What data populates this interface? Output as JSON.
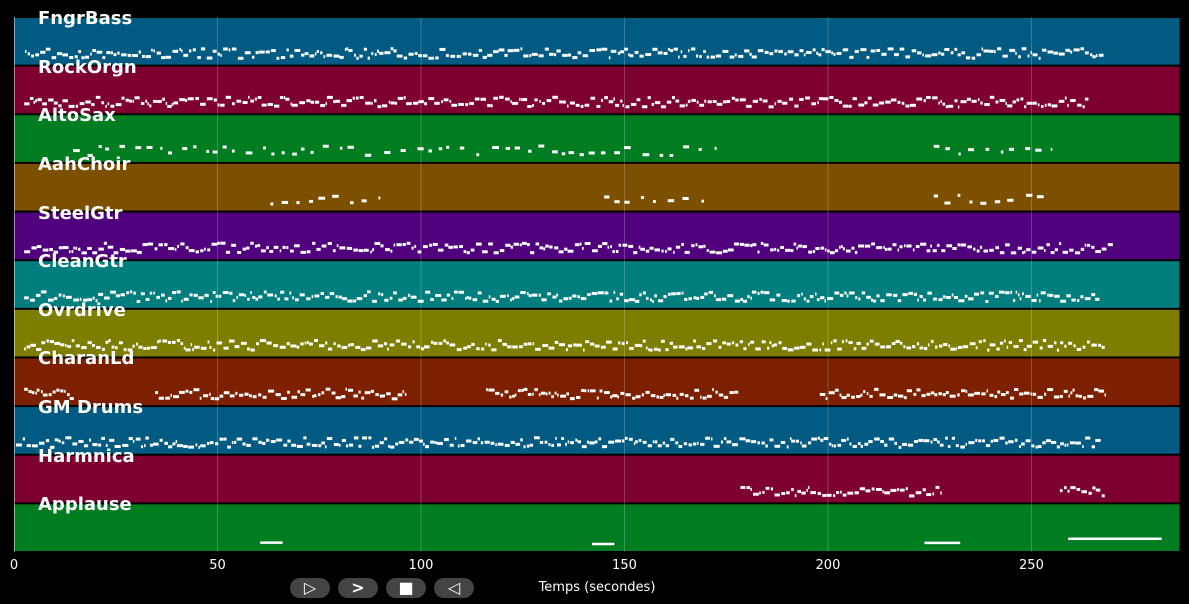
{
  "chart_data": {
    "type": "piano-roll",
    "xlabel": "Temps (secondes)",
    "xlim": [
      0,
      286.5
    ],
    "xticks": [
      0,
      50,
      100,
      150,
      200,
      250
    ],
    "grid": true,
    "tracks": [
      {
        "name": "FngrBass",
        "color": "#005a82",
        "active": [
          [
            2.7,
            267.7
          ]
        ],
        "density": "dense"
      },
      {
        "name": "RockOrgn",
        "color": "#7d0030",
        "active": [
          [
            2.5,
            264
          ]
        ],
        "density": "dense"
      },
      {
        "name": "AltoSax",
        "color": "#007d20",
        "active": [
          [
            14.5,
            173.5
          ],
          [
            226,
            255
          ]
        ],
        "density": "sparse"
      },
      {
        "name": "AahChoir",
        "color": "#7d5000",
        "active": [
          [
            63,
            90
          ],
          [
            145,
            172
          ],
          [
            226,
            253
          ]
        ],
        "density": "sparse"
      },
      {
        "name": "SteelGtr",
        "color": "#50007d",
        "active": [
          [
            2.5,
            270
          ]
        ],
        "density": "dense"
      },
      {
        "name": "CleanGtr",
        "color": "#007d7d",
        "active": [
          [
            2.5,
            267
          ]
        ],
        "density": "dense"
      },
      {
        "name": "Ovrdrive",
        "color": "#7d7d00",
        "active": [
          [
            2.5,
            268
          ]
        ],
        "density": "dense"
      },
      {
        "name": "CharanLd",
        "color": "#7d2000",
        "active": [
          [
            2.5,
            14.7
          ],
          [
            34.7,
            96.4
          ],
          [
            116,
            178
          ],
          [
            198,
            268
          ]
        ],
        "density": "dense"
      },
      {
        "name": "GM Drums",
        "color": "#005a82",
        "active": [
          [
            0.5,
            267
          ]
        ],
        "density": "dense"
      },
      {
        "name": "Harmnica",
        "color": "#7d0030",
        "active": [
          [
            178.5,
            227.6
          ],
          [
            257,
            268
          ]
        ],
        "density": "dense"
      },
      {
        "name": "Applause",
        "color": "#007d20",
        "active": [
          [
            60.5,
            66
          ],
          [
            142,
            147.5
          ],
          [
            223.7,
            232.5
          ],
          [
            259,
            282
          ]
        ],
        "density": "long"
      }
    ]
  },
  "controls": {
    "play": "▷",
    "next": ">",
    "stop": "■",
    "back": "◁"
  }
}
